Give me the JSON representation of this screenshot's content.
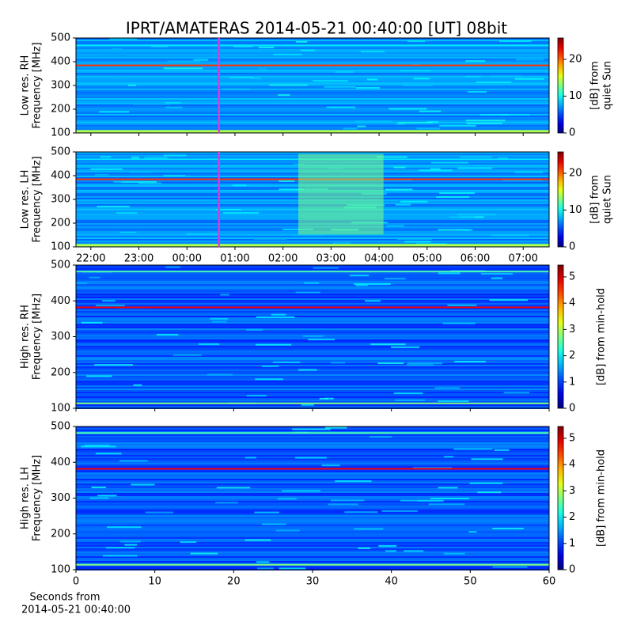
{
  "title": "IPRT/AMATERAS 2014-05-21 00:40:00 [UT]   08bit",
  "chart_data": [
    {
      "type": "heatmap",
      "colormap": "jet",
      "ylabel": [
        "Low res. RH",
        "Frequency [MHz]"
      ],
      "ylim": [
        100,
        500
      ],
      "yticks": [
        100,
        200,
        300,
        400,
        500
      ],
      "xlim": [
        21.69,
        31.54
      ],
      "xticks": [
        22,
        23,
        24,
        25,
        26,
        27,
        28,
        29,
        30,
        31
      ],
      "xtick_labels": false,
      "marker_line": {
        "x": 24.6667,
        "color": "#e535d6"
      },
      "colorbar": {
        "label": [
          "[dB] from",
          "quiet Sun"
        ],
        "lim": [
          0,
          25.8
        ],
        "ticks": [
          0,
          10,
          20
        ]
      }
    },
    {
      "type": "heatmap",
      "colormap": "jet",
      "ylabel": [
        "Low res. LH",
        "Frequency [MHz]"
      ],
      "ylim": [
        100,
        500
      ],
      "yticks": [
        100,
        200,
        300,
        400,
        500
      ],
      "xlim": [
        21.69,
        31.54
      ],
      "xticks": [
        {
          "value": 22,
          "label": "22:00"
        },
        {
          "value": 23,
          "label": "23:00"
        },
        {
          "value": 24,
          "label": "00:00"
        },
        {
          "value": 25,
          "label": "01:00"
        },
        {
          "value": 26,
          "label": "02:00"
        },
        {
          "value": 27,
          "label": "03:00"
        },
        {
          "value": 28,
          "label": "04:00"
        },
        {
          "value": 29,
          "label": "05:00"
        },
        {
          "value": 30,
          "label": "06:00"
        },
        {
          "value": 31,
          "label": "07:00"
        }
      ],
      "xtick_labels": true,
      "marker_line": {
        "x": 24.6667,
        "color": "#e535d6"
      },
      "colorbar": {
        "label": [
          "[dB] from",
          "quiet Sun"
        ],
        "lim": [
          0,
          25.8
        ],
        "ticks": [
          0,
          10,
          20
        ]
      }
    },
    {
      "type": "heatmap",
      "colormap": "jet",
      "ylabel": [
        "High res. RH",
        "Frequency [MHz]"
      ],
      "ylim": [
        100,
        500
      ],
      "yticks": [
        100,
        200,
        300,
        400,
        500
      ],
      "xlim": [
        0,
        60
      ],
      "xticks": [
        0,
        10,
        20,
        30,
        40,
        50,
        60
      ],
      "xtick_labels": false,
      "colorbar": {
        "label": [
          "[dB] from min-hold"
        ],
        "lim": [
          0,
          5.45
        ],
        "ticks": [
          0,
          1,
          2,
          3,
          4,
          5
        ]
      }
    },
    {
      "type": "heatmap",
      "colormap": "jet",
      "ylabel": [
        "High res. LH",
        "Frequency [MHz]"
      ],
      "ylim": [
        100,
        500
      ],
      "yticks": [
        100,
        200,
        300,
        400,
        500
      ],
      "xlim": [
        0,
        60
      ],
      "xticks": [
        0,
        10,
        20,
        30,
        40,
        50,
        60
      ],
      "xtick_labels": true,
      "xlabel": [
        "Seconds from",
        "2014-05-21 00:40:00"
      ],
      "colorbar": {
        "label": [
          "[dB] from min-hold"
        ],
        "lim": [
          0,
          5.45
        ],
        "ticks": [
          0,
          1,
          2,
          3,
          4,
          5
        ]
      }
    }
  ]
}
